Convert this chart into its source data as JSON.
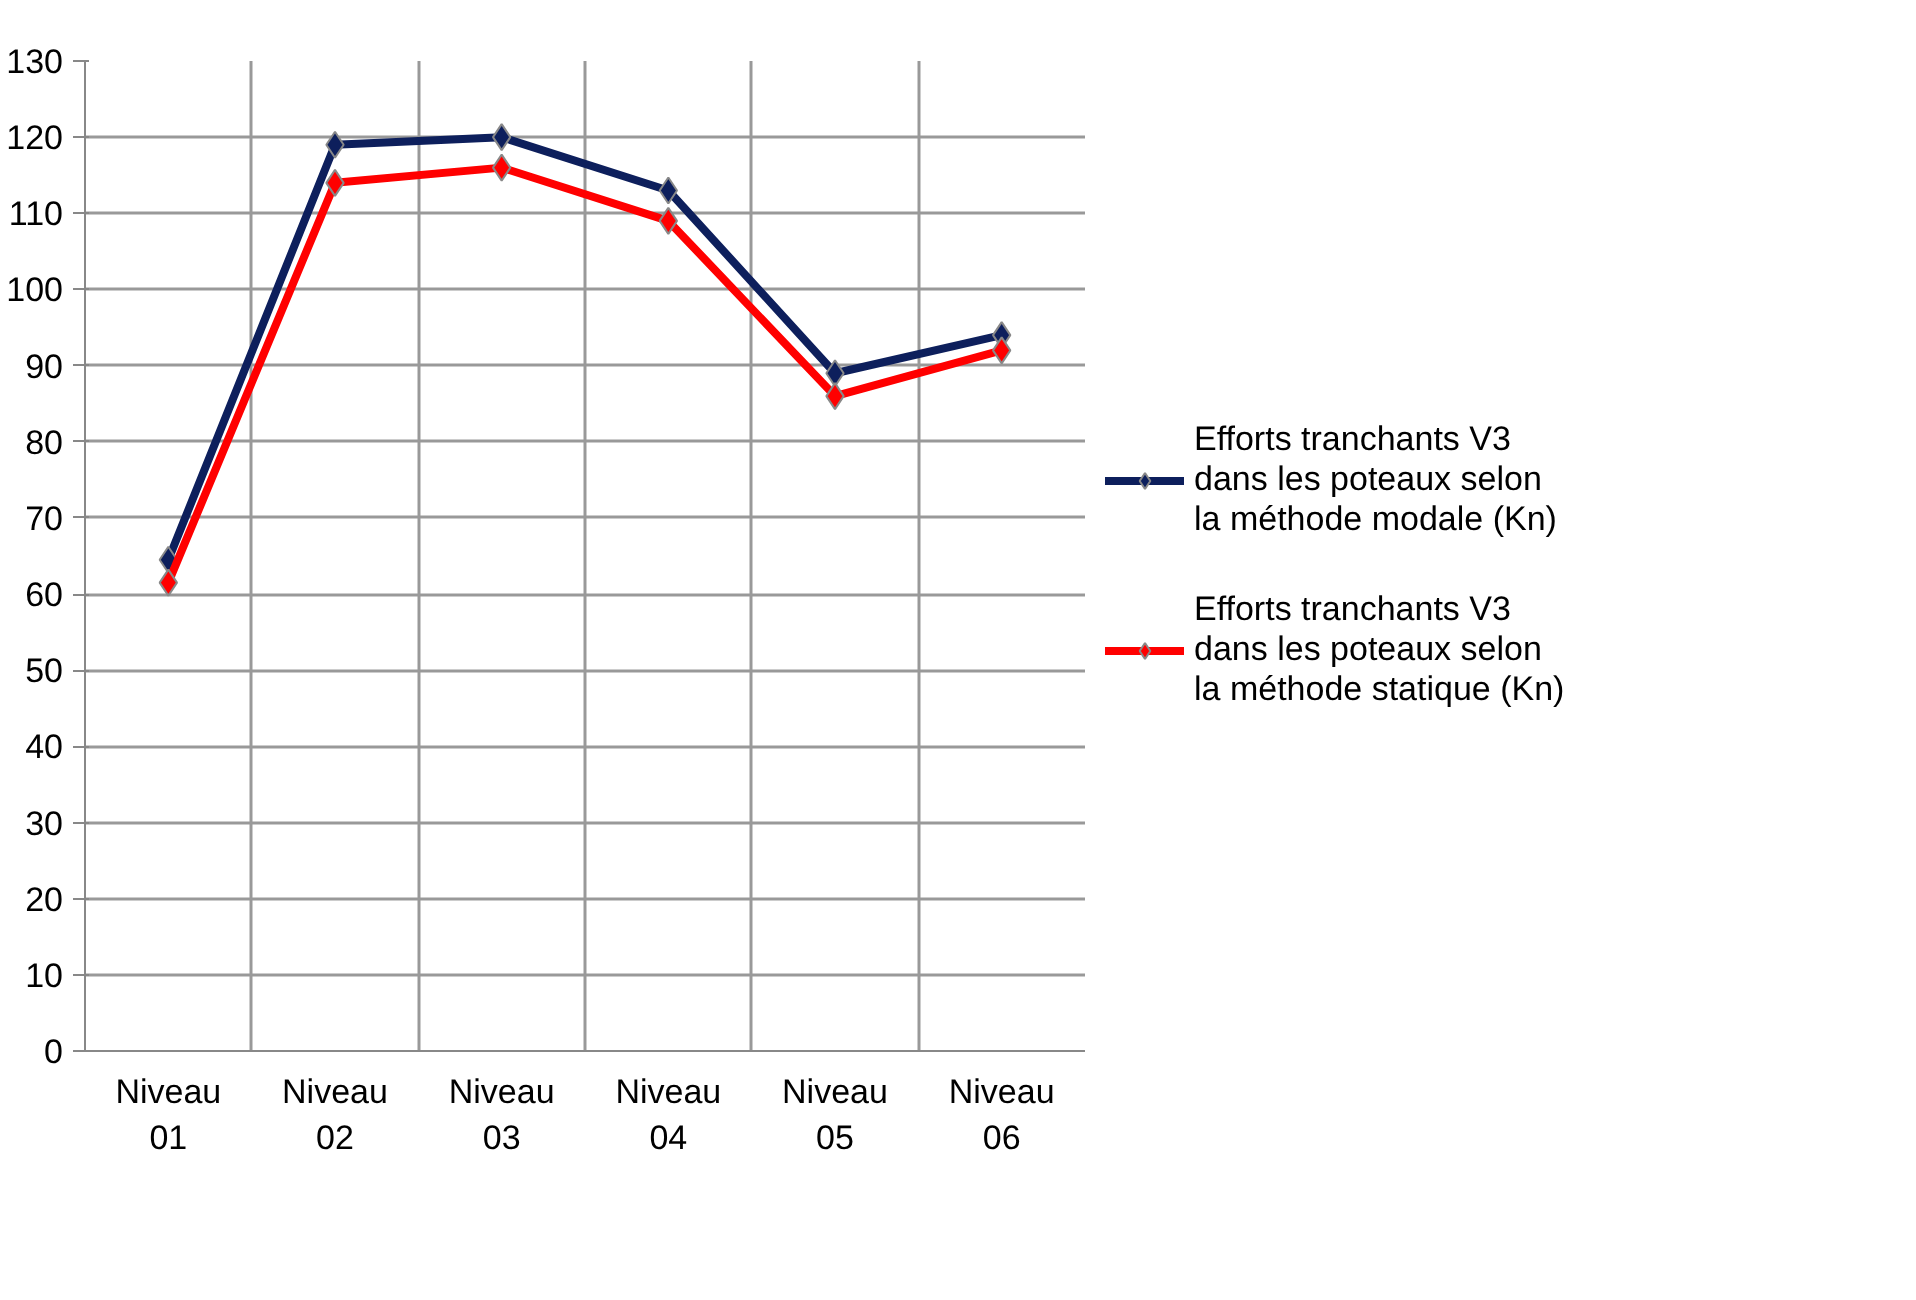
{
  "chart_data": {
    "type": "line",
    "categories": [
      "Niveau 01",
      "Niveau 02",
      "Niveau 03",
      "Niveau 04",
      "Niveau 05",
      "Niveau 06"
    ],
    "series": [
      {
        "name": "Efforts tranchants V3 dans les poteaux selon la méthode modale (Kn)",
        "color": "#0d1f5c",
        "values": [
          64.5,
          119,
          120,
          113,
          89,
          94
        ]
      },
      {
        "name": "Efforts tranchants V3 dans les poteaux selon la méthode statique (Kn)",
        "color": "#ff0000",
        "values": [
          61.5,
          114,
          116,
          109,
          86,
          92
        ]
      }
    ],
    "ylim": [
      0,
      130
    ],
    "yticks": [
      0,
      10,
      20,
      30,
      40,
      50,
      60,
      70,
      80,
      90,
      100,
      110,
      120,
      130
    ],
    "grid": true,
    "legend": "right",
    "marker": "diamond",
    "line_style": "solid"
  }
}
